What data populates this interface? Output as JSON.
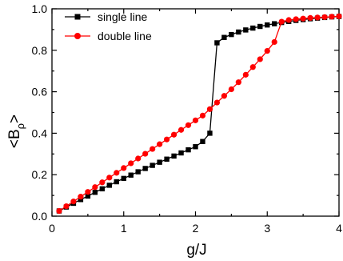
{
  "chart_data": {
    "type": "line",
    "xlabel": "g/J",
    "ylabel_main": "<B",
    "ylabel_sub": "ρ",
    "ylabel_close": ">",
    "xlim": [
      0,
      4
    ],
    "ylim": [
      0.0,
      1.0
    ],
    "xticks": [
      "0",
      "1",
      "2",
      "3",
      "4"
    ],
    "xtick_values": [
      0,
      1,
      2,
      3,
      4
    ],
    "yticks": [
      "0.0",
      "0.2",
      "0.4",
      "0.6",
      "0.8",
      "1.0"
    ],
    "ytick_values": [
      0.0,
      0.2,
      0.4,
      0.6,
      0.8,
      1.0
    ],
    "grid": false,
    "legend_placement": "top-left",
    "series": [
      {
        "name": "single line",
        "color": "#000000",
        "marker": "square",
        "x": [
          0.1,
          0.2,
          0.3,
          0.4,
          0.5,
          0.6,
          0.7,
          0.8,
          0.9,
          1.0,
          1.1,
          1.2,
          1.3,
          1.4,
          1.5,
          1.6,
          1.7,
          1.8,
          1.9,
          2.0,
          2.1,
          2.2,
          2.3,
          2.4,
          2.5,
          2.6,
          2.7,
          2.8,
          2.9,
          3.0,
          3.1,
          3.2,
          3.3,
          3.4,
          3.5,
          3.6,
          3.7,
          3.8,
          3.9,
          4.0
        ],
        "y": [
          0.025,
          0.044,
          0.062,
          0.08,
          0.097,
          0.115,
          0.132,
          0.149,
          0.166,
          0.182,
          0.198,
          0.214,
          0.23,
          0.245,
          0.26,
          0.275,
          0.29,
          0.305,
          0.32,
          0.335,
          0.36,
          0.4,
          0.836,
          0.862,
          0.876,
          0.888,
          0.898,
          0.907,
          0.915,
          0.922,
          0.928,
          0.934,
          0.939,
          0.944,
          0.948,
          0.952,
          0.955,
          0.958,
          0.961,
          0.963
        ]
      },
      {
        "name": "double line",
        "color": "#ff0000",
        "marker": "circle",
        "x": [
          0.1,
          0.2,
          0.3,
          0.4,
          0.5,
          0.6,
          0.7,
          0.8,
          0.9,
          1.0,
          1.1,
          1.2,
          1.3,
          1.4,
          1.5,
          1.6,
          1.7,
          1.8,
          1.9,
          2.0,
          2.1,
          2.2,
          2.3,
          2.4,
          2.5,
          2.6,
          2.7,
          2.8,
          2.9,
          3.0,
          3.1,
          3.2,
          3.3,
          3.4,
          3.5,
          3.6,
          3.7,
          3.8,
          3.9,
          4.0
        ],
        "y": [
          0.025,
          0.048,
          0.071,
          0.094,
          0.117,
          0.14,
          0.163,
          0.186,
          0.209,
          0.232,
          0.255,
          0.278,
          0.301,
          0.324,
          0.347,
          0.37,
          0.393,
          0.416,
          0.439,
          0.462,
          0.485,
          0.516,
          0.548,
          0.58,
          0.612,
          0.646,
          0.682,
          0.719,
          0.757,
          0.797,
          0.84,
          0.938,
          0.946,
          0.95,
          0.953,
          0.956,
          0.958,
          0.96,
          0.962,
          0.964
        ]
      }
    ]
  }
}
